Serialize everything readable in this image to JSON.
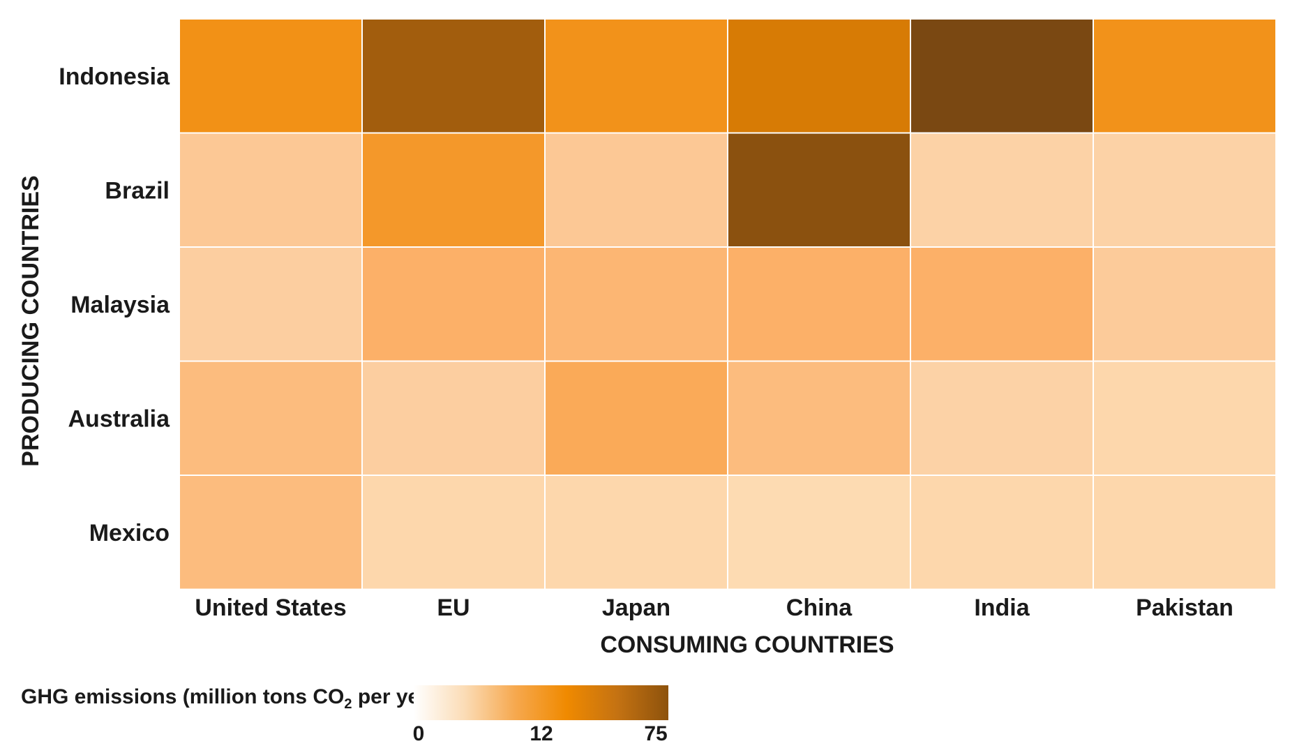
{
  "chart_data": {
    "type": "heatmap",
    "title": "",
    "xlabel": "CONSUMING COUNTRIES",
    "ylabel": "PRODUCING COUNTRIES",
    "x_categories": [
      "United States",
      "EU",
      "Japan",
      "China",
      "India",
      "Pakistan"
    ],
    "y_categories": [
      "Indonesia",
      "Brazil",
      "Malaysia",
      "Australia",
      "Mexico"
    ],
    "values": [
      [
        13,
        40,
        12,
        24,
        75,
        12
      ],
      [
        3,
        11,
        3,
        55,
        1.5,
        1.5
      ],
      [
        2,
        7,
        6,
        7,
        7,
        2.5
      ],
      [
        5,
        2,
        8,
        5,
        1.5,
        1
      ],
      [
        5,
        1,
        1,
        0.5,
        1,
        1
      ]
    ],
    "colorbar": {
      "title_prefix": "GHG emissions (million tons CO",
      "title_subscript": "2",
      "title_suffix": " per year)",
      "ticks": [
        "0",
        "12",
        "75"
      ],
      "colors": [
        "#ffffff",
        "#fbdcb6",
        "#f6a84e",
        "#f08a00",
        "#c47212",
        "#8d520c"
      ]
    },
    "grid": true
  }
}
